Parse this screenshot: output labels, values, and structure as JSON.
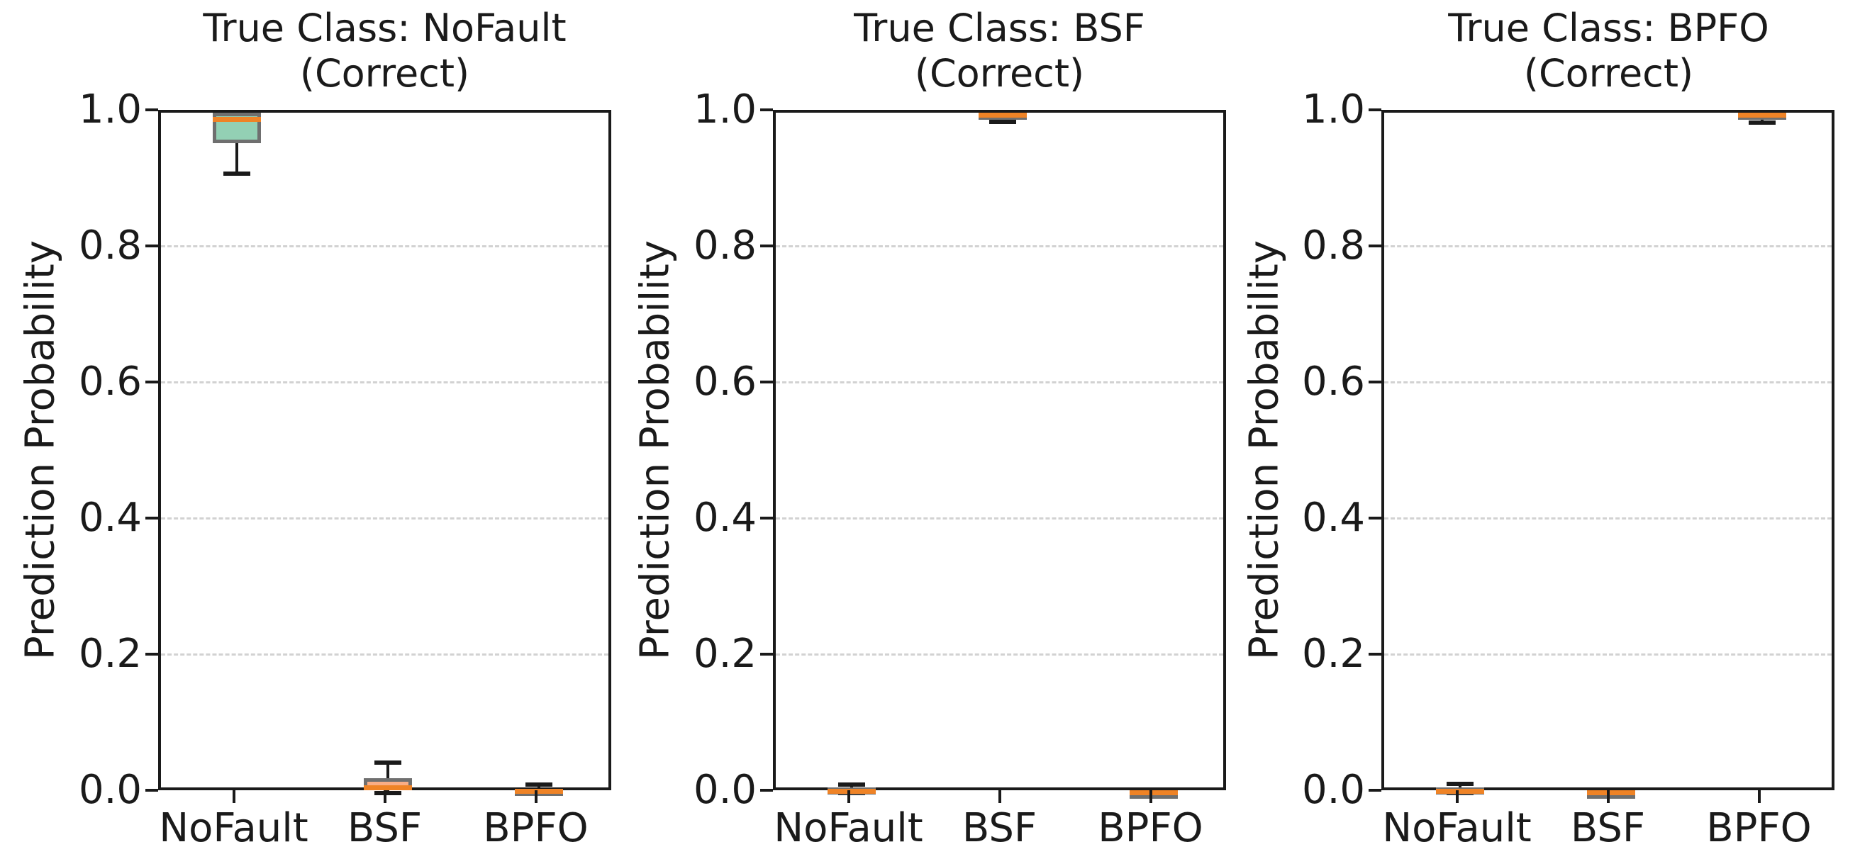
{
  "styles": {
    "background_color": "#ffffff",
    "text_color": "#1a1a1a",
    "spine_color": "#1a1a1a",
    "grid_color": "#d2d2d2",
    "grid_style": "dashed",
    "box_edge_color": "#6f6f6f",
    "median_color": "#ef8326",
    "whisker_color": "#1a1a1a"
  },
  "chart_data": [
    {
      "type": "box",
      "title_line1": "True Class: NoFault",
      "title_line2": "(Correct)",
      "title": "True Class: NoFault (Correct)",
      "ylabel": "Prediction Probability",
      "xlabel": "",
      "categories": [
        "NoFault",
        "BSF",
        "BPFO"
      ],
      "ylim": [
        0.0,
        1.0
      ],
      "yticks": [
        {
          "value": 0.0,
          "label": "0.0"
        },
        {
          "value": 0.2,
          "label": "0.2"
        },
        {
          "value": 0.4,
          "label": "0.4"
        },
        {
          "value": 0.6,
          "label": "0.6"
        },
        {
          "value": 0.8,
          "label": "0.8"
        },
        {
          "value": 1.0,
          "label": "1.0"
        }
      ],
      "grid": "horizontal-dashed",
      "legend": "none",
      "boxes": [
        {
          "category": "NoFault",
          "whisker_low": 0.91,
          "q1": 0.955,
          "median": 0.99,
          "q3": 1.0,
          "whisker_high": 1.0,
          "fill_color": "#93d0b4"
        },
        {
          "category": "BSF",
          "whisker_low": 0.0,
          "q1": 0.004,
          "median": 0.008,
          "q3": 0.022,
          "whisker_high": 0.045,
          "fill_color": "#f9ad85"
        },
        {
          "category": "BPFO",
          "whisker_low": 0.0,
          "q1": 0.001,
          "median": 0.003,
          "q3": 0.006,
          "whisker_high": 0.012,
          "fill_color": "#aab4d6"
        }
      ]
    },
    {
      "type": "box",
      "title_line1": "True Class: BSF",
      "title_line2": "(Correct)",
      "title": "True Class: BSF (Correct)",
      "ylabel": "Prediction Probability",
      "xlabel": "",
      "categories": [
        "NoFault",
        "BSF",
        "BPFO"
      ],
      "ylim": [
        0.0,
        1.0
      ],
      "yticks": [
        {
          "value": 0.0,
          "label": "0.0"
        },
        {
          "value": 0.2,
          "label": "0.2"
        },
        {
          "value": 0.4,
          "label": "0.4"
        },
        {
          "value": 0.6,
          "label": "0.6"
        },
        {
          "value": 0.8,
          "label": "0.8"
        },
        {
          "value": 1.0,
          "label": "1.0"
        }
      ],
      "grid": "horizontal-dashed",
      "legend": "none",
      "boxes": [
        {
          "category": "NoFault",
          "whisker_low": 0.0,
          "q1": 0.001,
          "median": 0.003,
          "q3": 0.008,
          "whisker_high": 0.013,
          "fill_color": "#93d0b4"
        },
        {
          "category": "BSF",
          "whisker_low": 0.986,
          "q1": 0.992,
          "median": 0.998,
          "q3": 1.0,
          "whisker_high": 1.0,
          "fill_color": "#f9ad85"
        },
        {
          "category": "BPFO",
          "whisker_low": 0.0,
          "q1": 0.0,
          "median": 0.001,
          "q3": 0.002,
          "whisker_high": 0.003,
          "fill_color": "#aab4d6"
        }
      ]
    },
    {
      "type": "box",
      "title_line1": "True Class: BPFO",
      "title_line2": "(Correct)",
      "title": "True Class: BPFO (Correct)",
      "ylabel": "Prediction Probability",
      "xlabel": "",
      "categories": [
        "NoFault",
        "BSF",
        "BPFO"
      ],
      "ylim": [
        0.0,
        1.0
      ],
      "yticks": [
        {
          "value": 0.0,
          "label": "0.0"
        },
        {
          "value": 0.2,
          "label": "0.2"
        },
        {
          "value": 0.4,
          "label": "0.4"
        },
        {
          "value": 0.6,
          "label": "0.6"
        },
        {
          "value": 0.8,
          "label": "0.8"
        },
        {
          "value": 1.0,
          "label": "1.0"
        }
      ],
      "grid": "horizontal-dashed",
      "legend": "none",
      "boxes": [
        {
          "category": "NoFault",
          "whisker_low": 0.0,
          "q1": 0.001,
          "median": 0.003,
          "q3": 0.008,
          "whisker_high": 0.014,
          "fill_color": "#93d0b4"
        },
        {
          "category": "BSF",
          "whisker_low": 0.0,
          "q1": 0.0,
          "median": 0.001,
          "q3": 0.002,
          "whisker_high": 0.003,
          "fill_color": "#aab4d6"
        },
        {
          "category": "BPFO",
          "whisker_low": 0.985,
          "q1": 0.991,
          "median": 0.997,
          "q3": 1.0,
          "whisker_high": 1.0,
          "fill_color": "#f9ad85"
        }
      ]
    }
  ]
}
